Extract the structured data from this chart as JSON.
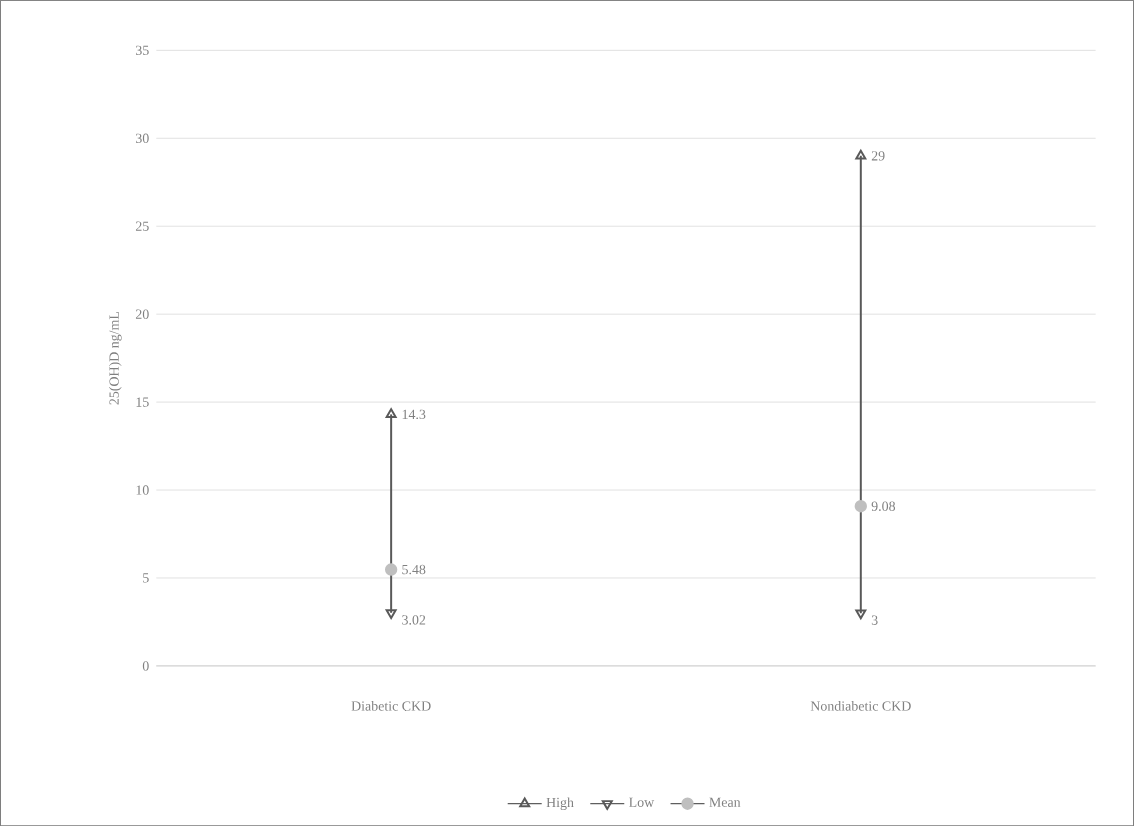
{
  "chart_data": {
    "type": "scatter",
    "ylabel": "25(OH)D ng/mL",
    "categories": [
      "Diabetic CKD",
      "Nondiabetic CKD"
    ],
    "series": [
      {
        "name": "High",
        "color": "#595959",
        "marker": "triangle",
        "values": [
          14.3,
          29
        ]
      },
      {
        "name": "Low",
        "color": "#595959",
        "marker": "triangle",
        "values": [
          3.02,
          3
        ]
      },
      {
        "name": "Mean",
        "color": "#bfbfbf",
        "marker": "circle",
        "values": [
          5.48,
          9.08
        ]
      }
    ],
    "ylim": [
      0,
      35
    ],
    "yticks": [
      0,
      5,
      10,
      15,
      20,
      25,
      30,
      35
    ],
    "grid": "y",
    "legend": "bottom",
    "data_labels": true
  }
}
